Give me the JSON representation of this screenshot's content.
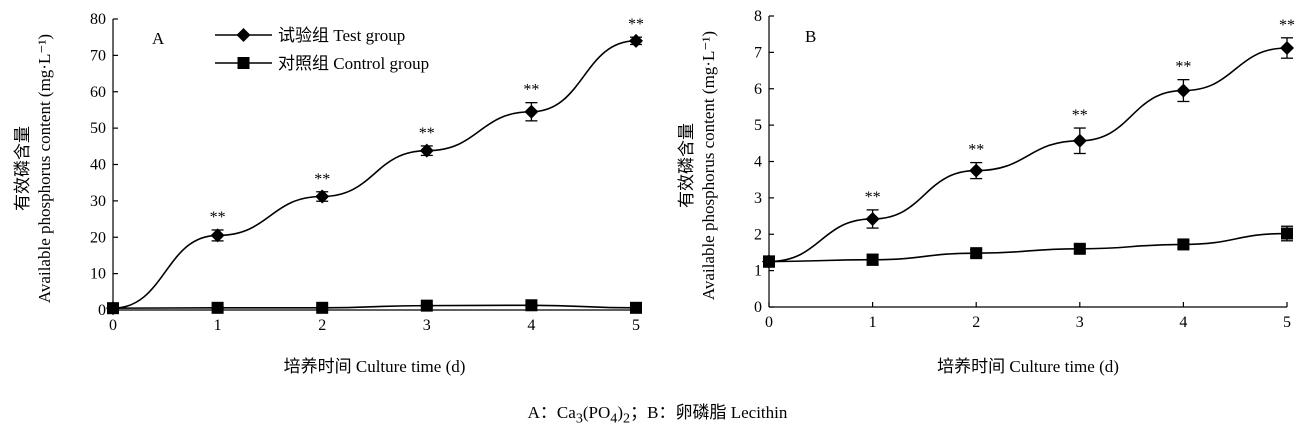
{
  "chart_data": [
    {
      "type": "line",
      "panel_label": "A",
      "xlabel": "培养时间 Culture time (d)",
      "ylabel_cn": "有效磷含量",
      "ylabel_en": "Available phosphorus content (mg·L⁻¹)",
      "xlim": [
        0,
        5
      ],
      "ylim": [
        0,
        80
      ],
      "x_ticks": [
        0,
        1,
        2,
        3,
        4,
        5
      ],
      "y_ticks": [
        0,
        10,
        20,
        30,
        40,
        50,
        60,
        70,
        80
      ],
      "grid": false,
      "legend_position": "top-left",
      "x": [
        0,
        1,
        2,
        3,
        4,
        5
      ],
      "series": [
        {
          "name": "试验组 Test group",
          "marker": "diamond",
          "values": [
            0.5,
            20.5,
            31.2,
            43.8,
            54.5,
            74.0
          ],
          "errors": [
            0.3,
            1.5,
            1.3,
            1.3,
            2.5,
            1.0
          ],
          "annotations": [
            "",
            "**",
            "**",
            "**",
            "**",
            "**"
          ]
        },
        {
          "name": "对照组 Control group",
          "marker": "square",
          "values": [
            0.5,
            0.6,
            0.6,
            1.2,
            1.3,
            0.6
          ],
          "errors": [
            0.2,
            0.2,
            0.2,
            0.3,
            0.3,
            0.2
          ],
          "annotations": [
            "",
            "",
            "",
            "",
            "",
            ""
          ]
        }
      ]
    },
    {
      "type": "line",
      "panel_label": "B",
      "xlabel": "培养时间 Culture time (d)",
      "ylabel_cn": "有效磷含量",
      "ylabel_en": "Available phosphorus content (mg·L⁻¹)",
      "xlim": [
        0,
        5
      ],
      "ylim": [
        0,
        8
      ],
      "x_ticks": [
        0,
        1,
        2,
        3,
        4,
        5
      ],
      "y_ticks": [
        0,
        1,
        2,
        3,
        4,
        5,
        6,
        7,
        8
      ],
      "grid": false,
      "x": [
        0,
        1,
        2,
        3,
        4,
        5
      ],
      "series": [
        {
          "name": "试验组 Test group",
          "marker": "diamond",
          "values": [
            1.25,
            2.42,
            3.75,
            4.57,
            5.95,
            7.12
          ],
          "errors": [
            0.15,
            0.25,
            0.22,
            0.35,
            0.3,
            0.28
          ],
          "annotations": [
            "",
            "**",
            "**",
            "**",
            "**",
            "**"
          ]
        },
        {
          "name": "对照组 Control group",
          "marker": "square",
          "values": [
            1.25,
            1.3,
            1.48,
            1.6,
            1.72,
            2.02
          ],
          "errors": [
            0.15,
            0.15,
            0.1,
            0.1,
            0.1,
            0.2
          ],
          "annotations": [
            "",
            "",
            "",
            "",
            "",
            ""
          ]
        }
      ]
    }
  ],
  "caption": {
    "prefix": "A：Ca",
    "sub1": "3",
    "mid1": "(PO",
    "sub2": "4",
    "mid2": ")",
    "sub3": "2",
    "suffix": "；B：卵磷脂 Lecithin"
  }
}
